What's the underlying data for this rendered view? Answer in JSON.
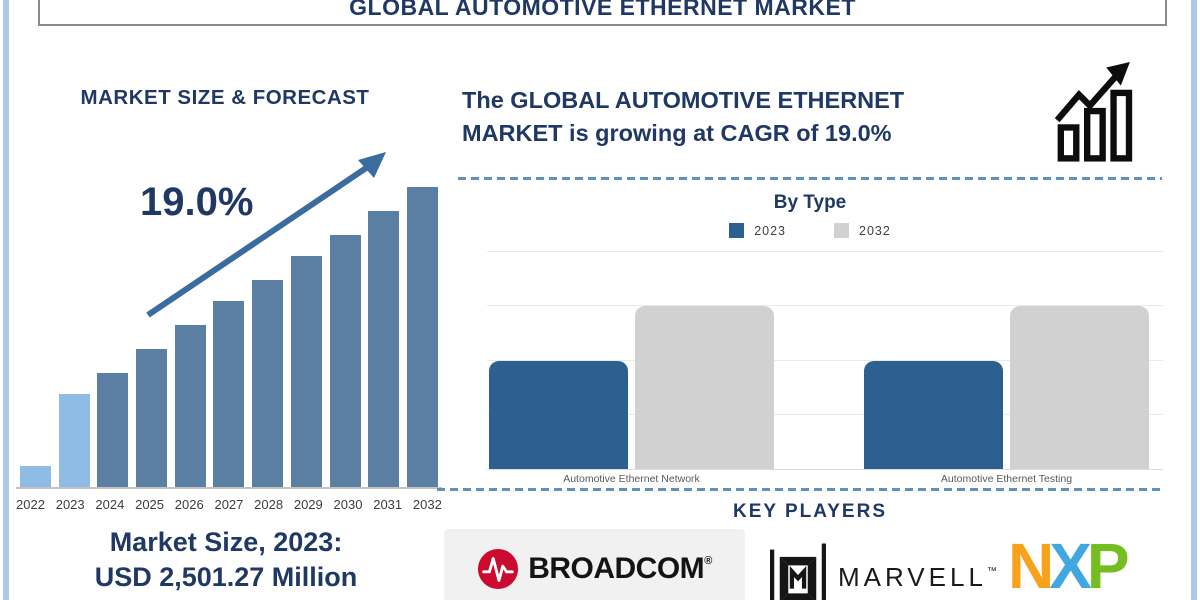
{
  "page": {
    "title": "GLOBAL AUTOMOTIVE ETHERNET MARKET"
  },
  "left_panel": {
    "heading": "MARKET SIZE & FORECAST",
    "cagr_label": "19.0%",
    "footer_line1": "Market Size, 2023:",
    "footer_line2": "USD 2,501.27 Million"
  },
  "growth_banner": {
    "line1": "The GLOBAL AUTOMOTIVE ETHERNET",
    "line2": "MARKET is growing at CAGR of 19.0%",
    "icon": "growth-chart-icon"
  },
  "by_type": {
    "title": "By Type"
  },
  "key_players": {
    "heading": "KEY PLAYERS",
    "broadcom": {
      "name": "BROADCOM",
      "mark": "®",
      "icon": "broadcom-pulse-icon",
      "brand_red": "#cc092f",
      "panel_bg": "#f1f1f1"
    },
    "marvell": {
      "name": "MARVELL",
      "mark": "™",
      "icon": "marvell-emblem-icon",
      "brand_black": "#151515"
    },
    "nxp": {
      "letters": [
        {
          "ch": "N",
          "color": "#f7a21b"
        },
        {
          "ch": "X",
          "color": "#41a7e1"
        },
        {
          "ch": "P",
          "color": "#74be21"
        }
      ]
    }
  },
  "colors": {
    "navy_text": "#1f3864",
    "forecast_bar": "#5b7ea3",
    "forecast_bar_highlight": "#8fbce4",
    "trend_arrow": "#3a6c9e",
    "dashed_divider": "#6090bc",
    "by_type_2023": "#2c608f",
    "by_type_2032": "#d1d1d1",
    "edge_stripe": "#aacbe9"
  },
  "chart_data": [
    {
      "type": "bar",
      "title": "MARKET SIZE & FORECAST",
      "x": [
        "2022",
        "2023",
        "2024",
        "2025",
        "2026",
        "2027",
        "2028",
        "2029",
        "2030",
        "2031",
        "2032"
      ],
      "values_relative_height_pct": [
        7,
        31,
        38,
        46,
        54,
        62,
        69,
        77,
        84,
        92,
        100
      ],
      "value_axis": "not labeled (illustrative bar heights)",
      "known_point": {
        "year": "2023",
        "value_usd_million": 2501.27
      },
      "cagr_pct": 19.0,
      "annotation": "19.0%",
      "trend_arrow": true,
      "light_bar_years": [
        "2022",
        "2023"
      ],
      "light_bar_color": "#8fbce4",
      "bar_color": "#5b7ea3",
      "xlabel": "",
      "ylabel": "",
      "grid": false
    },
    {
      "type": "bar",
      "title": "By Type",
      "categories": [
        "Automotive Ethernet Network",
        "Automotive Ethernet Testing"
      ],
      "series": [
        {
          "name": "2023",
          "color": "#2c608f",
          "values_pct_of_axis": [
            50,
            50
          ]
        },
        {
          "name": "2032",
          "color": "#d1d1d1",
          "values_pct_of_axis": [
            75,
            75
          ]
        }
      ],
      "legend_position": "top",
      "grid": true,
      "gridline_pcts": [
        25,
        50,
        75,
        100
      ],
      "value_axis": "not labeled"
    }
  ]
}
